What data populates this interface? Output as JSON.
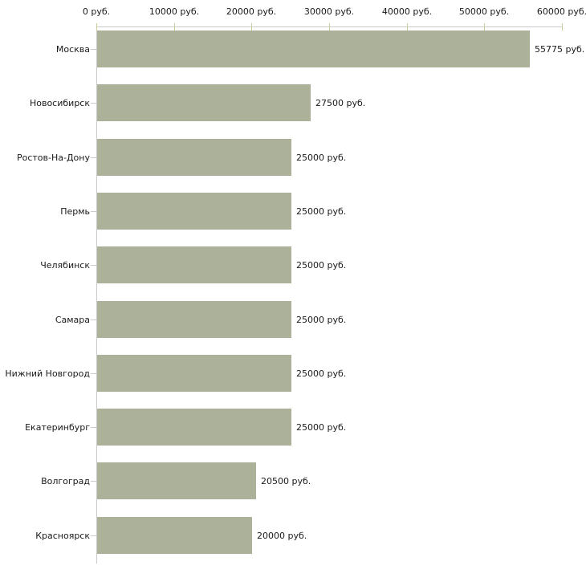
{
  "chart_data": {
    "type": "bar",
    "orientation": "horizontal",
    "title": "",
    "xlabel": "",
    "ylabel": "",
    "unit": "руб.",
    "xlim": [
      0,
      60000
    ],
    "grid": false,
    "legend": false,
    "categories": [
      "Москва",
      "Новосибирск",
      "Ростов-На-Дону",
      "Пермь",
      "Челябинск",
      "Самара",
      "Нижний Новгород",
      "Екатеринбург",
      "Волгоград",
      "Красноярск"
    ],
    "values": [
      55775,
      27500,
      25000,
      25000,
      25000,
      25000,
      25000,
      25000,
      20500,
      20000
    ],
    "value_labels": [
      "55775 руб.",
      "27500 руб.",
      "25000 руб.",
      "25000 руб.",
      "25000 руб.",
      "25000 руб.",
      "25000 руб.",
      "25000 руб.",
      "20500 руб.",
      "20000 руб."
    ],
    "x_ticks": [
      {
        "value": 0,
        "label": "0 руб."
      },
      {
        "value": 10000,
        "label": "10000 руб."
      },
      {
        "value": 20000,
        "label": "20000 руб."
      },
      {
        "value": 30000,
        "label": "30000 руб."
      },
      {
        "value": 40000,
        "label": "40000 руб."
      },
      {
        "value": 50000,
        "label": "50000 руб."
      },
      {
        "value": 60000,
        "label": "60000 руб."
      }
    ],
    "colors": {
      "bar": "#acb199",
      "axis_line": "#c9c9c9",
      "x_tick_mark": "#cccc99",
      "y_tick_mark": "#c9c9c9",
      "text": "#1a1a1a",
      "background": "#ffffff"
    }
  }
}
